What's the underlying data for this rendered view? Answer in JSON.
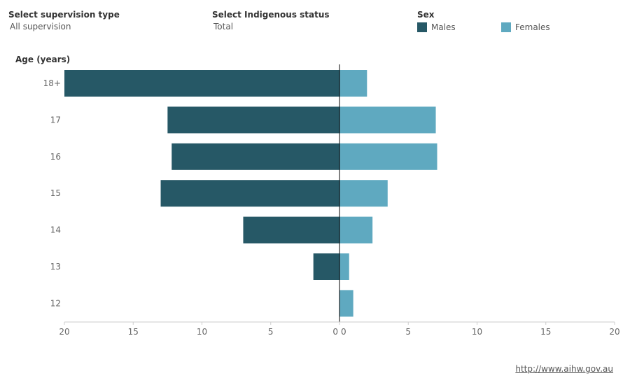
{
  "filters": {
    "supervision": {
      "label": "Select supervision type",
      "value": "All supervision"
    },
    "indigenous": {
      "label": "Select Indigenous status",
      "value": "Total"
    }
  },
  "legend": {
    "title": "Sex",
    "items": [
      {
        "label": "Males",
        "color": "#265866"
      },
      {
        "label": "Females",
        "color": "#5fa9c0"
      }
    ]
  },
  "source_link": "http://www.aihw.gov.au",
  "chart_data": {
    "type": "bar",
    "orientation": "horizontal-population-pyramid",
    "ylabel": "Age (years)",
    "categories": [
      "18+",
      "17",
      "16",
      "15",
      "14",
      "13",
      "12"
    ],
    "series": [
      {
        "name": "Males",
        "color": "#265866",
        "values": [
          20,
          12.5,
          12.2,
          13,
          7,
          1.9,
          0
        ]
      },
      {
        "name": "Females",
        "color": "#5fa9c0",
        "values": [
          2,
          7,
          7.1,
          3.5,
          2.4,
          0.7,
          1
        ]
      }
    ],
    "xlim": [
      0,
      20
    ],
    "xticks": [
      20,
      15,
      10,
      5,
      0
    ],
    "xtick_labels_left": [
      "20",
      "15",
      "10",
      "5",
      "0"
    ],
    "xtick_labels_right": [
      "0",
      "5",
      "10",
      "15",
      "20"
    ],
    "grid": false
  }
}
